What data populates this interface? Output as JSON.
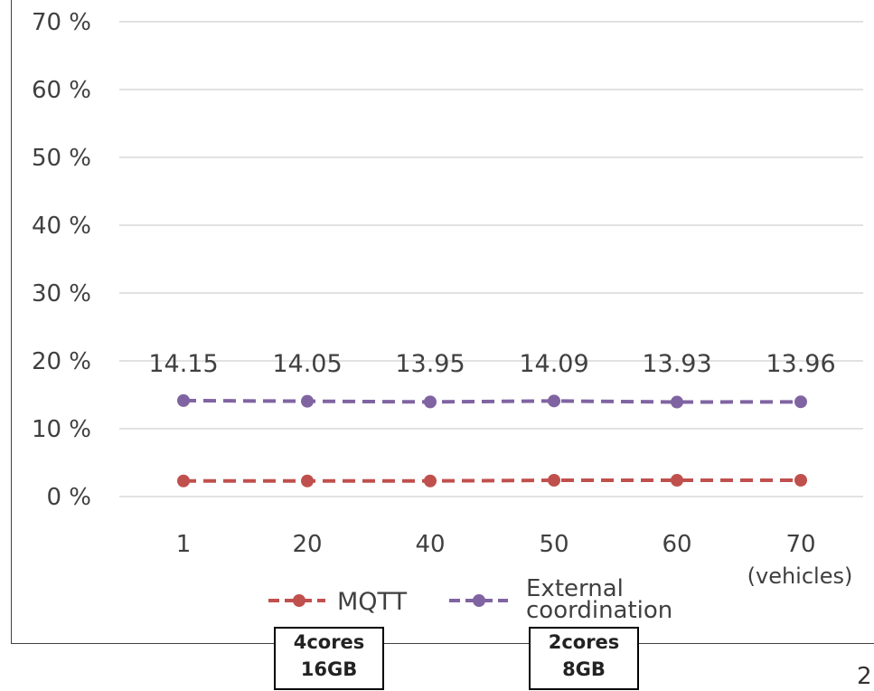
{
  "chart_data": {
    "type": "line",
    "categories": [
      "1",
      "20",
      "40",
      "50",
      "60",
      "70"
    ],
    "x_unit_label": "(vehicles)",
    "y_ticks": [
      "0 %",
      "10 %",
      "20 %",
      "30 %",
      "40 %",
      "50 %",
      "60 %",
      "70 %"
    ],
    "ylim": [
      0,
      70
    ],
    "grid": true,
    "legend_position": "bottom",
    "series": [
      {
        "name": "MQTT",
        "color": "#c0504d",
        "values": [
          2.3,
          2.3,
          2.3,
          2.4,
          2.4,
          2.4
        ],
        "labels": []
      },
      {
        "name": "External coordination",
        "color": "#8064a2",
        "values": [
          14.15,
          14.05,
          13.95,
          14.09,
          13.93,
          13.96
        ],
        "labels": [
          "14.15",
          "14.05",
          "13.95",
          "14.09",
          "13.93",
          "13.96"
        ]
      }
    ]
  },
  "spec_boxes": [
    {
      "cores": "4cores",
      "memory": "16GB"
    },
    {
      "cores": "2cores",
      "memory": "8GB"
    }
  ],
  "page_number": "2"
}
